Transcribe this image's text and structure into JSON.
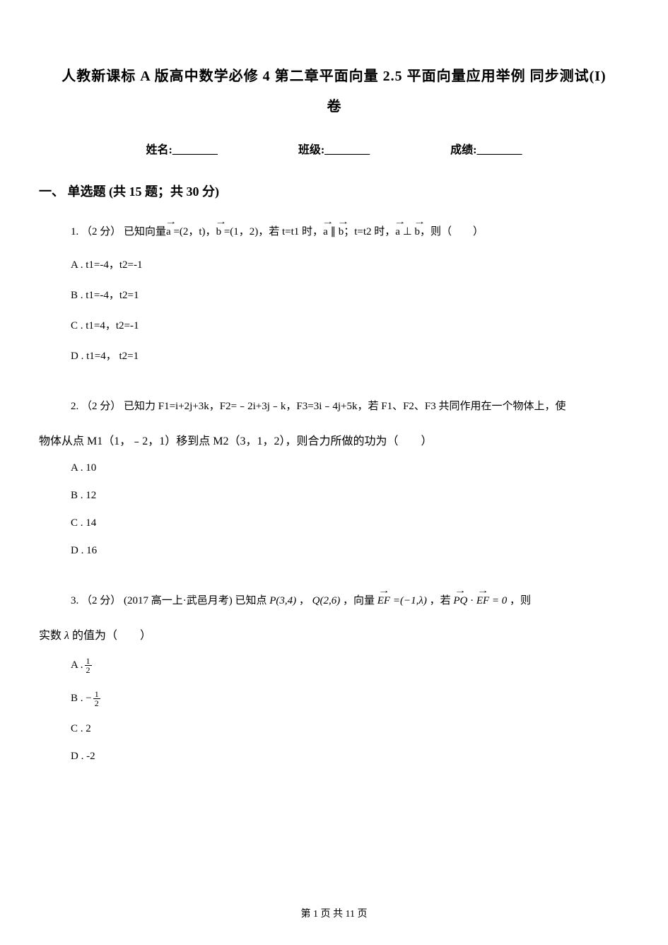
{
  "title": "人教新课标 A 版高中数学必修 4  第二章平面向量  2.5 平面向量应用举例  同步测试(I)",
  "subtitle": "卷",
  "info": {
    "name_label": "姓名:________",
    "class_label": "班级:________",
    "grade_label": "成绩:________"
  },
  "section1": {
    "header": "一、 单选题 (共 15 题；共 30 分)"
  },
  "q1": {
    "prefix": "1.  （2 分） 已知向量",
    "mid1": " =(2，t)，",
    "mid2": "  =(1，2)，若 t=t1 时，",
    "mid3": "；t=t2 时，",
    "suffix": "，则（　　）",
    "vec_a": "a",
    "vec_b": "b",
    "parallel": " ∥ ",
    "perp": " ⊥ ",
    "optA": "A . t1=-4，t2=-1",
    "optB": "B . t1=-4，t2=1",
    "optC": "C . t1=4，t2=-1",
    "optD": "D . t1=4， t2=1"
  },
  "q2": {
    "line1": "2.  （2 分） 已知力 F1=i+2j+3k，F2=﹣2i+3j﹣k，F3=3i﹣4j+5k，若 F1、F2、F3 共同作用在一个物体上，使",
    "line2": "物体从点 M1（1，﹣2，1）移到点 M2（3，1，2），则合力所做的功为（　　）",
    "optA": "A . 10",
    "optB": "B . 12",
    "optC": "C . 14",
    "optD": "D . 16"
  },
  "q3": {
    "prefix": "3.  （2 分） (2017 高一上·武邑月考) 已知点 ",
    "P": "P(3,4)",
    "mid1": " ， ",
    "Q": "Q(2,6)",
    "mid2": " ，向量 ",
    "EF_label": "EF",
    "EF_val": " =(−1,λ) ",
    "mid3": " ，若 ",
    "PQ_label": "PQ",
    "dot": " · ",
    "eq": " = 0 ",
    "suffix": " ，则",
    "line2_prefix": "实数 ",
    "lambda": "λ",
    "line2_suffix": " 的值为（　　）",
    "A_label": "A . ",
    "B_label": "B .  −",
    "C_label": "C . 2",
    "D_label": "D . -2",
    "frac_num": "1",
    "frac_den": "2"
  },
  "footer": "第 1 页 共 11 页"
}
